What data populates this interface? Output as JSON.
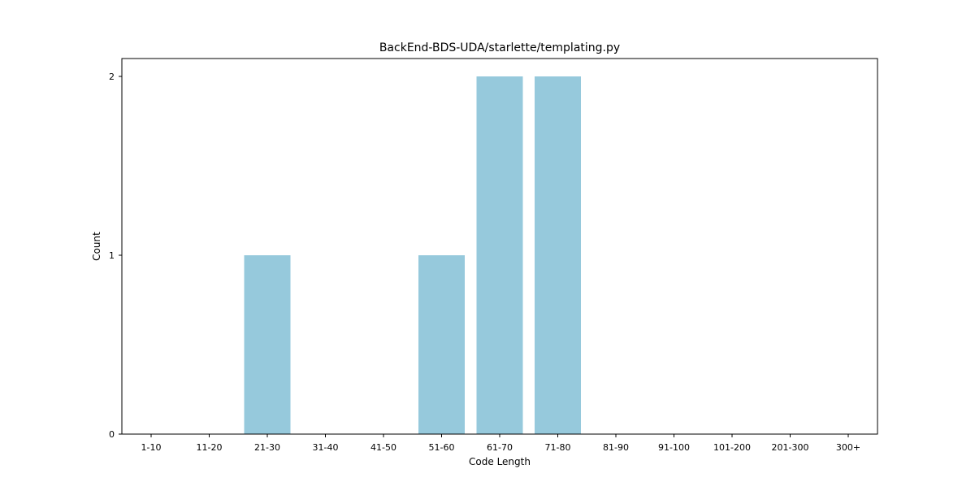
{
  "chart_data": {
    "type": "bar",
    "title": "BackEnd-BDS-UDA/starlette/templating.py",
    "xlabel": "Code Length",
    "ylabel": "Count",
    "categories": [
      "1-10",
      "11-20",
      "21-30",
      "31-40",
      "41-50",
      "51-60",
      "61-70",
      "71-80",
      "81-90",
      "91-100",
      "101-200",
      "201-300",
      "300+"
    ],
    "values": [
      0,
      0,
      1,
      0,
      0,
      1,
      2,
      2,
      0,
      0,
      0,
      0,
      0
    ],
    "yticks": [
      0,
      1,
      2
    ],
    "ylim": [
      0,
      2.1
    ],
    "grid": false,
    "bar_color": "#96c9dc"
  }
}
